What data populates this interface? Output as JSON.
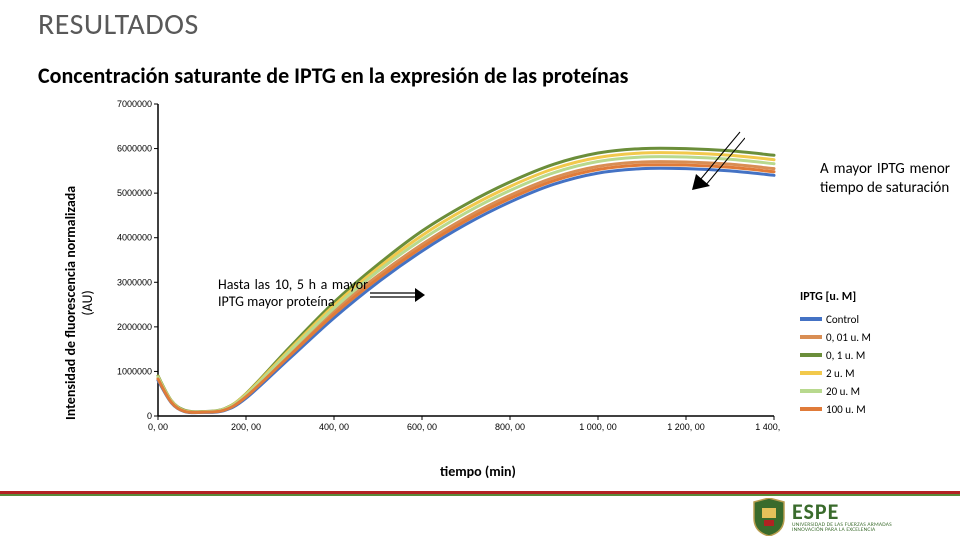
{
  "title": "RESULTADOS",
  "subtitle": "Concentración saturante de IPTG en la expresión de las proteínas",
  "y_axis_label_main": "Intensidad de fluorescencia normalizada",
  "y_axis_label_sub": "(AU)",
  "x_axis_label": "tiempo (min)",
  "note1": "Hasta las 10, 5 h a mayor IPTG mayor proteína",
  "note2": "A mayor IPTG menor tiempo de saturación",
  "chart": {
    "type": "line",
    "xlim": [
      0,
      1400
    ],
    "ylim": [
      0,
      7000000
    ],
    "x_ticks": [
      0,
      200,
      400,
      600,
      800,
      1000,
      1200,
      1400
    ],
    "x_tick_labels": [
      "0, 00",
      "200, 00",
      "400, 00",
      "600, 00",
      "800, 00",
      "1 000, 00",
      "1 200, 00",
      "1 400, 00"
    ],
    "y_ticks": [
      0,
      1000000,
      2000000,
      3000000,
      4000000,
      5000000,
      6000000,
      7000000
    ],
    "y_tick_labels": [
      "0",
      "1000000",
      "2000000",
      "3000000",
      "4000000",
      "5000000",
      "6000000",
      "7000000"
    ],
    "line_width": 3,
    "grid": false,
    "background_color": "#ffffff",
    "axis_color": "#000000",
    "series": [
      {
        "name": "Control",
        "color": "#4472c4",
        "points": [
          [
            0,
            800000
          ],
          [
            30,
            300000
          ],
          [
            60,
            100000
          ],
          [
            100,
            80000
          ],
          [
            150,
            120000
          ],
          [
            200,
            400000
          ],
          [
            300,
            1300000
          ],
          [
            400,
            2200000
          ],
          [
            500,
            3000000
          ],
          [
            600,
            3700000
          ],
          [
            700,
            4300000
          ],
          [
            800,
            4800000
          ],
          [
            900,
            5200000
          ],
          [
            1000,
            5450000
          ],
          [
            1100,
            5550000
          ],
          [
            1200,
            5550000
          ],
          [
            1300,
            5500000
          ],
          [
            1400,
            5400000
          ]
        ]
      },
      {
        "name": "0, 01 u. M",
        "color": "#d98e54",
        "points": [
          [
            0,
            850000
          ],
          [
            30,
            320000
          ],
          [
            60,
            110000
          ],
          [
            100,
            90000
          ],
          [
            150,
            140000
          ],
          [
            200,
            450000
          ],
          [
            300,
            1400000
          ],
          [
            400,
            2350000
          ],
          [
            500,
            3150000
          ],
          [
            600,
            3850000
          ],
          [
            700,
            4450000
          ],
          [
            800,
            4950000
          ],
          [
            900,
            5350000
          ],
          [
            1000,
            5600000
          ],
          [
            1100,
            5700000
          ],
          [
            1200,
            5700000
          ],
          [
            1300,
            5650000
          ],
          [
            1400,
            5550000
          ]
        ]
      },
      {
        "name": "0, 1 u. M",
        "color": "#6b8e3a",
        "points": [
          [
            0,
            900000
          ],
          [
            30,
            350000
          ],
          [
            60,
            130000
          ],
          [
            100,
            100000
          ],
          [
            150,
            160000
          ],
          [
            200,
            500000
          ],
          [
            300,
            1550000
          ],
          [
            400,
            2550000
          ],
          [
            500,
            3400000
          ],
          [
            600,
            4150000
          ],
          [
            700,
            4750000
          ],
          [
            800,
            5250000
          ],
          [
            900,
            5650000
          ],
          [
            1000,
            5900000
          ],
          [
            1100,
            6000000
          ],
          [
            1200,
            6000000
          ],
          [
            1300,
            5950000
          ],
          [
            1400,
            5850000
          ]
        ]
      },
      {
        "name": "2 u. M",
        "color": "#f2c94c",
        "points": [
          [
            0,
            880000
          ],
          [
            30,
            340000
          ],
          [
            60,
            120000
          ],
          [
            100,
            95000
          ],
          [
            150,
            155000
          ],
          [
            200,
            490000
          ],
          [
            300,
            1500000
          ],
          [
            400,
            2480000
          ],
          [
            500,
            3320000
          ],
          [
            600,
            4050000
          ],
          [
            700,
            4650000
          ],
          [
            800,
            5150000
          ],
          [
            900,
            5550000
          ],
          [
            1000,
            5800000
          ],
          [
            1100,
            5900000
          ],
          [
            1200,
            5900000
          ],
          [
            1300,
            5850000
          ],
          [
            1400,
            5750000
          ]
        ]
      },
      {
        "name": "20 u. M",
        "color": "#b8d98e",
        "points": [
          [
            0,
            870000
          ],
          [
            30,
            330000
          ],
          [
            60,
            115000
          ],
          [
            100,
            92000
          ],
          [
            150,
            150000
          ],
          [
            200,
            470000
          ],
          [
            300,
            1460000
          ],
          [
            400,
            2420000
          ],
          [
            500,
            3250000
          ],
          [
            600,
            3960000
          ],
          [
            700,
            4560000
          ],
          [
            800,
            5060000
          ],
          [
            900,
            5460000
          ],
          [
            1000,
            5710000
          ],
          [
            1100,
            5810000
          ],
          [
            1200,
            5810000
          ],
          [
            1300,
            5760000
          ],
          [
            1400,
            5660000
          ]
        ]
      },
      {
        "name": "100 u. M",
        "color": "#e07b39",
        "points": [
          [
            0,
            830000
          ],
          [
            30,
            310000
          ],
          [
            60,
            105000
          ],
          [
            100,
            85000
          ],
          [
            150,
            130000
          ],
          [
            200,
            430000
          ],
          [
            300,
            1360000
          ],
          [
            400,
            2280000
          ],
          [
            500,
            3080000
          ],
          [
            600,
            3780000
          ],
          [
            700,
            4380000
          ],
          [
            800,
            4880000
          ],
          [
            900,
            5280000
          ],
          [
            1000,
            5530000
          ],
          [
            1100,
            5630000
          ],
          [
            1200,
            5630000
          ],
          [
            1300,
            5580000
          ],
          [
            1400,
            5480000
          ]
        ]
      }
    ]
  },
  "legend": {
    "title": "IPTG [u. M]",
    "items": [
      {
        "label": "Control",
        "color": "#4472c4"
      },
      {
        "label": "0, 01 u. M",
        "color": "#d98e54"
      },
      {
        "label": "0, 1 u. M",
        "color": "#6b8e3a"
      },
      {
        "label": "2 u. M",
        "color": "#f2c94c"
      },
      {
        "label": "20 u. M",
        "color": "#b8d98e"
      },
      {
        "label": "100 u. M",
        "color": "#e07b39"
      }
    ]
  },
  "logo": {
    "main": "ESPE",
    "sub1": "UNIVERSIDAD DE LAS FUERZAS ARMADAS",
    "sub2": "INNOVACIÓN PARA LA EXCELENCIA"
  },
  "colors": {
    "title": "#595959",
    "footer_red": "#b22222",
    "footer_green": "#5a8a3a",
    "logo_green": "#3a6b2c"
  }
}
